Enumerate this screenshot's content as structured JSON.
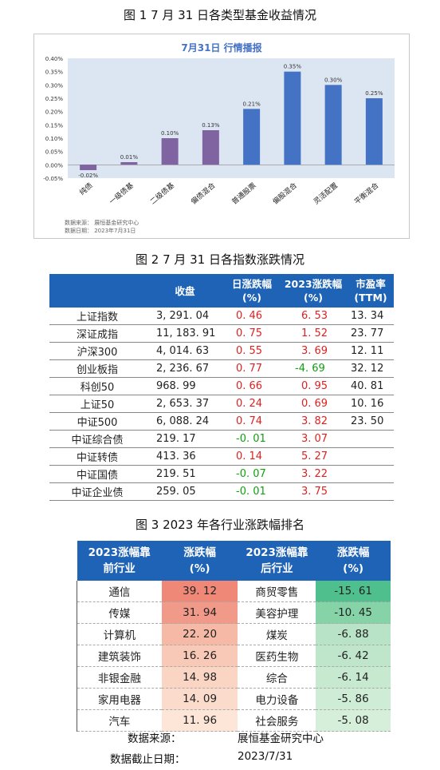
{
  "figure1": {
    "caption": "图 1  7 月 31 日各类型基金收益情况",
    "chart_title": "7月31日  行情播报",
    "source_line": "数据来源：    展恒基金研究中心",
    "date_line": "数据日期：    2023年7月31日"
  },
  "chart_data": {
    "type": "bar",
    "title": "7月31日  行情播报",
    "categories": [
      "纯债",
      "一级债基",
      "二级债基",
      "偏债混合",
      "普通股票",
      "偏股混合",
      "灵活配置",
      "平衡混合"
    ],
    "values": [
      -0.02,
      0.01,
      0.1,
      0.13,
      0.21,
      0.35,
      0.3,
      0.25
    ],
    "data_labels": [
      "-0.02%",
      "0.01%",
      "0.10%",
      "0.13%",
      "0.21%",
      "0.35%",
      "0.30%",
      "0.25%"
    ],
    "ylim": [
      -0.05,
      0.4
    ],
    "yticks": [
      "0.40%",
      "0.35%",
      "0.30%",
      "0.25%",
      "0.20%",
      "0.15%",
      "0.10%",
      "0.05%",
      "0.00%",
      "-0.05%"
    ],
    "bar_colors": [
      "#8064a2",
      "#8064a2",
      "#8064a2",
      "#8064a2",
      "#4472c4",
      "#4472c4",
      "#4472c4",
      "#4472c4"
    ],
    "plot_background": "#dce6f2",
    "grid": false
  },
  "figure2": {
    "caption": "图 2  7 月 31 日各指数涨跌情况",
    "headers": [
      "",
      "收盘",
      "日涨跌幅\n(%)",
      "2023涨跌幅\n(%)",
      "市盈率\n(TTM)"
    ],
    "rows": [
      {
        "name": "上证指数",
        "close": "3, 291. 04",
        "day": "0. 46",
        "day_dir": "up",
        "ytd": "6. 53",
        "ytd_dir": "up",
        "pe": "13. 34"
      },
      {
        "name": "深证成指",
        "close": "11, 183. 91",
        "day": "0. 75",
        "day_dir": "up",
        "ytd": "1. 52",
        "ytd_dir": "up",
        "pe": "23. 77"
      },
      {
        "name": "沪深300",
        "close": "4, 014. 63",
        "day": "0. 55",
        "day_dir": "up",
        "ytd": "3. 69",
        "ytd_dir": "up",
        "pe": "12. 11"
      },
      {
        "name": "创业板指",
        "close": "2, 236. 67",
        "day": "0. 77",
        "day_dir": "up",
        "ytd": "-4. 69",
        "ytd_dir": "down",
        "pe": "32. 12"
      },
      {
        "name": "科创50",
        "close": "968. 99",
        "day": "0. 66",
        "day_dir": "up",
        "ytd": "0. 95",
        "ytd_dir": "up",
        "pe": "40. 81"
      },
      {
        "name": "上证50",
        "close": "2, 653. 37",
        "day": "0. 24",
        "day_dir": "up",
        "ytd": "0. 69",
        "ytd_dir": "up",
        "pe": "10. 16"
      },
      {
        "name": "中证500",
        "close": "6, 088. 24",
        "day": "0. 74",
        "day_dir": "up",
        "ytd": "3. 82",
        "ytd_dir": "up",
        "pe": "23. 50"
      },
      {
        "name": "中证综合债",
        "close": "219. 17",
        "day": "-0. 01",
        "day_dir": "down",
        "ytd": "3. 07",
        "ytd_dir": "up",
        "pe": ""
      },
      {
        "name": "中证转债",
        "close": "413. 36",
        "day": "0. 14",
        "day_dir": "up",
        "ytd": "5. 27",
        "ytd_dir": "up",
        "pe": ""
      },
      {
        "name": "中证国债",
        "close": "219. 51",
        "day": "-0. 07",
        "day_dir": "down",
        "ytd": "3. 22",
        "ytd_dir": "up",
        "pe": ""
      },
      {
        "name": "中证企业债",
        "close": "259. 05",
        "day": "-0. 01",
        "day_dir": "down",
        "ytd": "3. 75",
        "ytd_dir": "up",
        "pe": ""
      }
    ],
    "colors": {
      "up": "#e02020",
      "down": "#10a010",
      "header": "#1f63b6"
    }
  },
  "figure3": {
    "caption": "图 3  2023 年各行业涨跌幅排名",
    "headers": [
      "2023涨幅靠\n前行业",
      "涨跌幅\n(%)",
      "2023涨幅靠\n后行业",
      "涨跌幅\n(%)"
    ],
    "rows": [
      {
        "top": "通信",
        "top_val": "39. 12",
        "bottom": "商贸零售",
        "bottom_val": "-15. 61"
      },
      {
        "top": "传媒",
        "top_val": "31. 94",
        "bottom": "美容护理",
        "bottom_val": "-10. 45"
      },
      {
        "top": "计算机",
        "top_val": "22. 20",
        "bottom": "煤炭",
        "bottom_val": "-6. 88"
      },
      {
        "top": "建筑装饰",
        "top_val": "16. 26",
        "bottom": "医药生物",
        "bottom_val": "-6. 42"
      },
      {
        "top": "非银金融",
        "top_val": "14. 98",
        "bottom": "综合",
        "bottom_val": "-6. 14"
      },
      {
        "top": "家用电器",
        "top_val": "14. 09",
        "bottom": "电力设备",
        "bottom_val": "-5. 86"
      },
      {
        "top": "汽车",
        "top_val": "11. 96",
        "bottom": "社会服务",
        "bottom_val": "-5. 08"
      }
    ],
    "top_colors": [
      "#f08878",
      "#f29a8a",
      "#f6b9a6",
      "#f8c9b6",
      "#fad5c4",
      "#fbdccc",
      "#fde5d8"
    ],
    "bottom_colors": [
      "#4fc08d",
      "#86d3a8",
      "#b8e3c6",
      "#bfe6cb",
      "#c7e9d0",
      "#cfecd6",
      "#d6efdb"
    ],
    "source_label": "数据来源：",
    "source_value": "展恒基金研究中心",
    "date_label": "数据截止日期：",
    "date_value": "2023/7/31"
  }
}
